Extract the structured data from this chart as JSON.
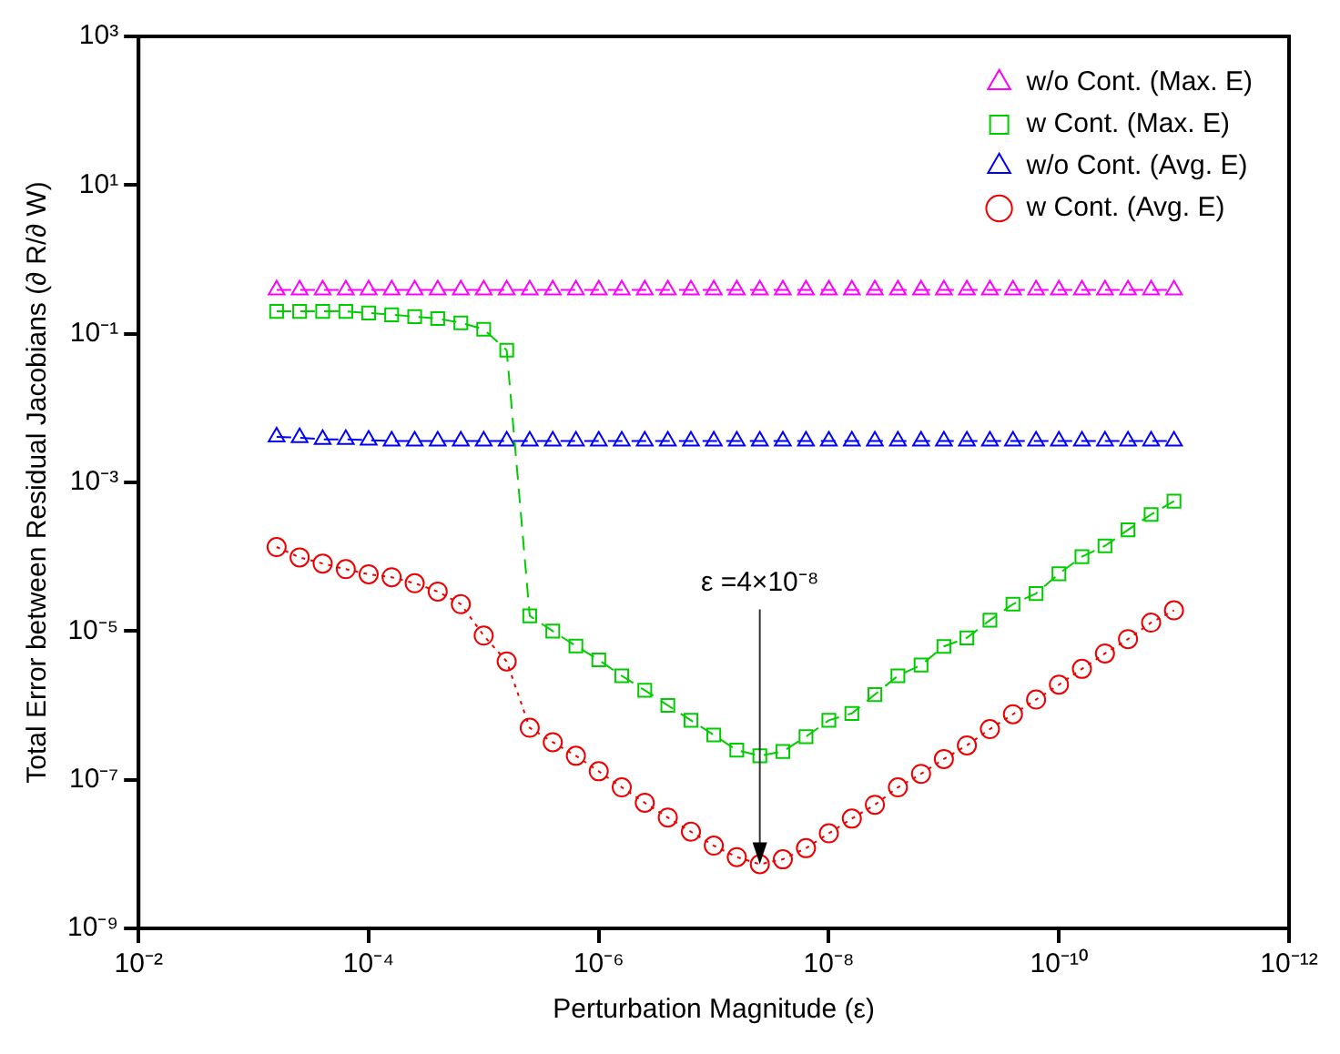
{
  "chart_data": {
    "type": "line",
    "xlabel": "Perturbation Magnitude (ε)",
    "ylabel": "Total Error between Residual Jacobians (∂ R/∂ W)",
    "x": [
      0.000631,
      0.000398,
      0.000251,
      0.000158,
      0.0001,
      6.31e-05,
      3.98e-05,
      2.51e-05,
      1.58e-05,
      1e-05,
      6.31e-06,
      3.98e-06,
      2.51e-06,
      1.58e-06,
      1e-06,
      6.31e-07,
      3.98e-07,
      2.51e-07,
      1.58e-07,
      1e-07,
      6.31e-08,
      3.98e-08,
      2.51e-08,
      1.58e-08,
      1e-08,
      6.31e-09,
      3.98e-09,
      2.51e-09,
      1.58e-09,
      1e-09,
      6.31e-10,
      3.98e-10,
      2.51e-10,
      1.58e-10,
      1e-10,
      6.31e-11,
      3.98e-11,
      2.51e-11,
      1.58e-11,
      1e-11
    ],
    "series": [
      {
        "name": "w/o Cont. (Max. E)",
        "color": "#ff00ff",
        "marker": "triangle",
        "line_style": "dashed",
        "values": [
          0.39,
          0.39,
          0.39,
          0.39,
          0.39,
          0.39,
          0.39,
          0.39,
          0.39,
          0.39,
          0.39,
          0.39,
          0.39,
          0.39,
          0.39,
          0.39,
          0.39,
          0.39,
          0.39,
          0.39,
          0.39,
          0.39,
          0.39,
          0.39,
          0.39,
          0.39,
          0.39,
          0.39,
          0.39,
          0.39,
          0.39,
          0.39,
          0.39,
          0.39,
          0.39,
          0.39,
          0.39,
          0.39,
          0.39,
          0.39
        ]
      },
      {
        "name": "w Cont. (Max. E)",
        "color": "#00cc00",
        "marker": "square",
        "line_style": "dashed",
        "values": [
          0.2,
          0.2,
          0.2,
          0.2,
          0.19,
          0.18,
          0.17,
          0.16,
          0.14,
          0.115,
          0.06,
          1.6e-05,
          1e-05,
          6.3e-06,
          4.1e-06,
          2.5e-06,
          1.6e-06,
          1e-06,
          6.3e-07,
          4e-07,
          2.5e-07,
          2.1e-07,
          2.4e-07,
          3.8e-07,
          6.3e-07,
          7.8e-07,
          1.4e-06,
          2.5e-06,
          3.5e-06,
          6.2e-06,
          8.1e-06,
          1.4e-05,
          2.3e-05,
          3.2e-05,
          5.9e-05,
          0.0001,
          0.00014,
          0.00023,
          0.00037,
          0.00056
        ]
      },
      {
        "name": "w/o Cont. (Avg. E)",
        "color": "#0000ff",
        "marker": "triangle",
        "line_style": "dashed",
        "values": [
          0.0041,
          0.004,
          0.0038,
          0.0038,
          0.0037,
          0.0036,
          0.0036,
          0.0036,
          0.0036,
          0.0036,
          0.0036,
          0.0036,
          0.0036,
          0.0036,
          0.0036,
          0.0036,
          0.0036,
          0.0036,
          0.0036,
          0.0036,
          0.0036,
          0.0036,
          0.0036,
          0.0036,
          0.0036,
          0.0036,
          0.0036,
          0.0036,
          0.0036,
          0.0036,
          0.0036,
          0.0036,
          0.0036,
          0.0036,
          0.0036,
          0.0036,
          0.0036,
          0.0036,
          0.0036,
          0.0036
        ]
      },
      {
        "name": "w Cont. (Avg. E)",
        "color": "#ee0000",
        "marker": "circle",
        "line_style": "dotted",
        "values": [
          0.000135,
          9.8e-05,
          8.1e-05,
          6.8e-05,
          5.8e-05,
          5.3e-05,
          4.4e-05,
          3.4e-05,
          2.3e-05,
          8.7e-06,
          3.9e-06,
          5e-07,
          3.2e-07,
          2.1e-07,
          1.3e-07,
          7.9e-08,
          4.9e-08,
          3.1e-08,
          2e-08,
          1.3e-08,
          9.1e-09,
          7.3e-09,
          8.5e-09,
          1.2e-08,
          1.9e-08,
          3e-08,
          4.6e-08,
          7.9e-08,
          1.2e-07,
          1.9e-07,
          2.9e-07,
          4.8e-07,
          7.6e-07,
          1.2e-06,
          1.9e-06,
          3.1e-06,
          5e-06,
          7.8e-06,
          1.3e-05,
          1.9e-05
        ]
      }
    ],
    "log": "xy",
    "xlim": [
      0.01,
      1e-12
    ],
    "ylim": [
      1e-09,
      1000.0
    ],
    "xticks": [
      {
        "value": 0.01,
        "label": "10⁻²"
      },
      {
        "value": 0.0001,
        "label": "10⁻⁴"
      },
      {
        "value": 1e-06,
        "label": "10⁻⁶"
      },
      {
        "value": 1e-08,
        "label": "10⁻⁸"
      },
      {
        "value": 1e-10,
        "label": "10⁻¹⁰"
      },
      {
        "value": 1e-12,
        "label": "10⁻¹²"
      }
    ],
    "yticks": [
      {
        "value": 1e-09,
        "label": "10⁻⁹"
      },
      {
        "value": 1e-07,
        "label": "10⁻⁷"
      },
      {
        "value": 1e-05,
        "label": "10⁻⁵"
      },
      {
        "value": 0.001,
        "label": "10⁻³"
      },
      {
        "value": 0.1,
        "label": "10⁻¹"
      },
      {
        "value": 10,
        "label": "10¹"
      },
      {
        "value": 1000,
        "label": "10³"
      }
    ],
    "grid": false,
    "legend": "top right",
    "annotations": [
      {
        "text": "ε =4×10⁻⁸",
        "x": 3.98e-08,
        "y": 7.3e-09
      }
    ]
  }
}
